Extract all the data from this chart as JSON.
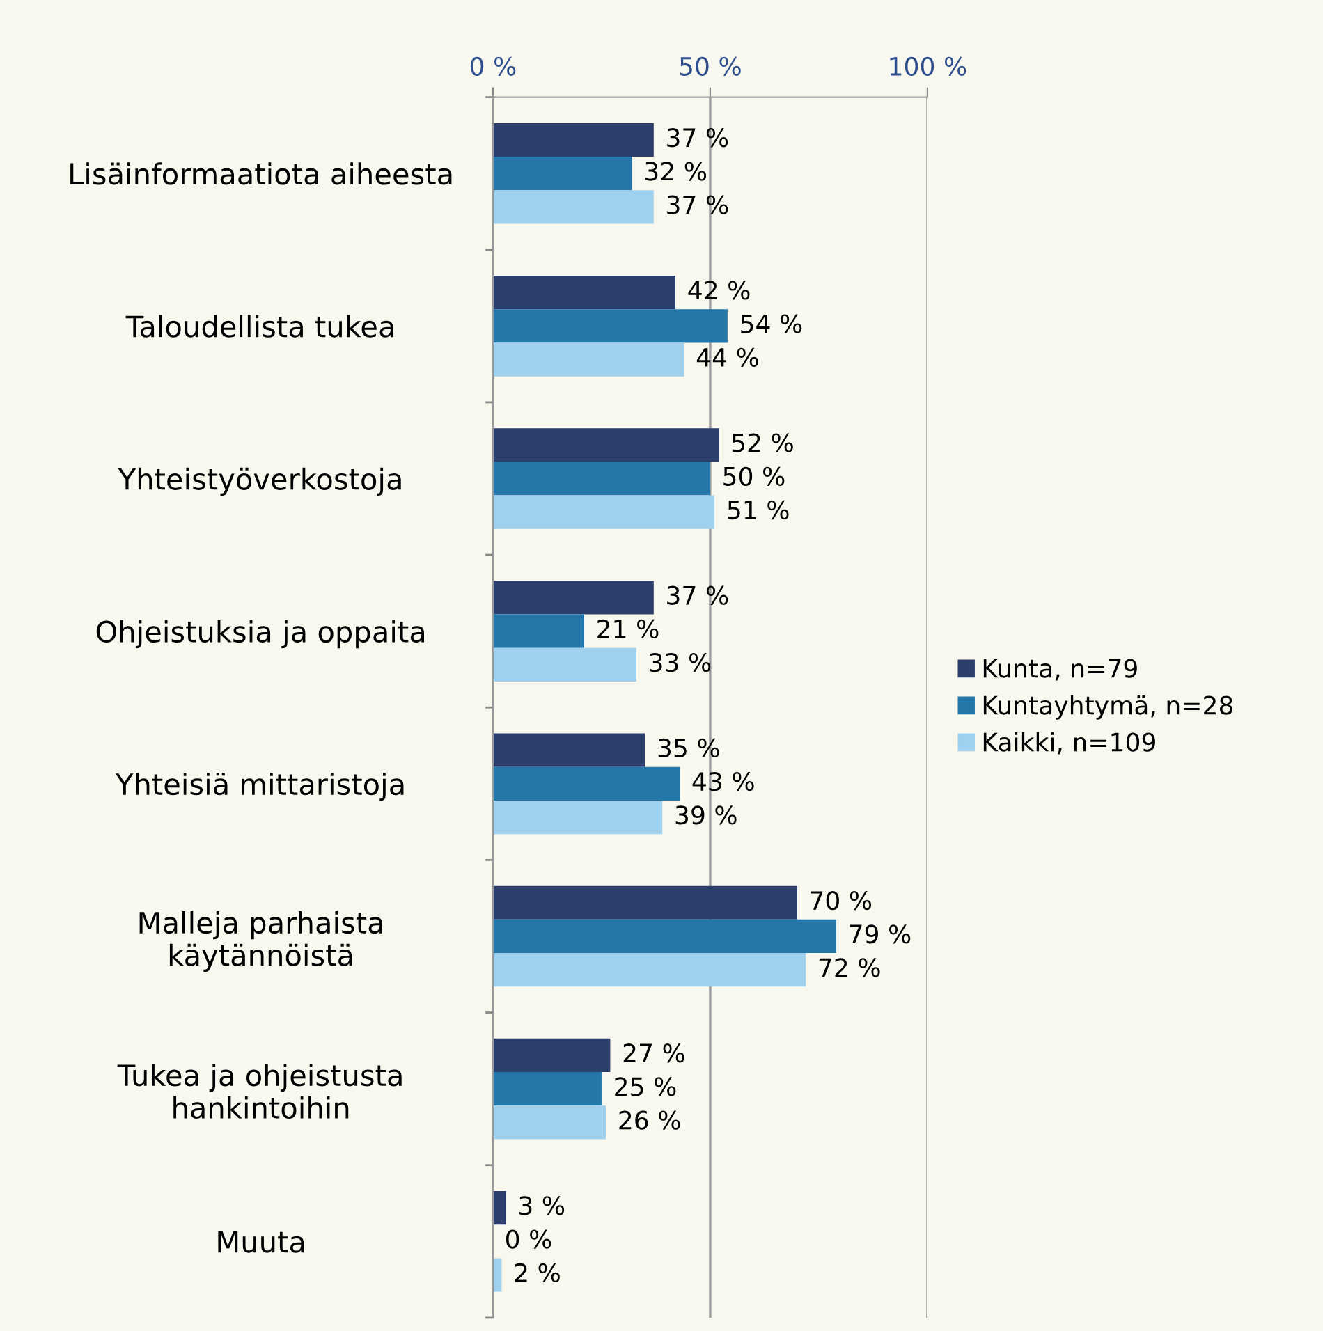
{
  "chart_data": {
    "type": "bar",
    "orientation": "horizontal",
    "categories": [
      "Lisäinformaatiota aiheesta",
      "Taloudellista tukea",
      "Yhteistyöverkostoja",
      "Ohjeistuksia ja oppaita",
      "Yhteisiä mittaristoja",
      "Malleja parhaista\nkäytännöistä",
      "Tukea ja ohjeistusta\nhankintoihin",
      "Muuta"
    ],
    "series": [
      {
        "name": "Kunta, n=79",
        "color": "#2c3e6b",
        "values": [
          37,
          42,
          52,
          37,
          35,
          70,
          27,
          3
        ],
        "value_labels": [
          "37 %",
          "42 %",
          "52 %",
          "37 %",
          "35 %",
          "70 %",
          "27 %",
          "3 %"
        ]
      },
      {
        "name": "Kuntayhtymä, n=28",
        "color": "#2577aa",
        "values": [
          32,
          54,
          50,
          21,
          43,
          79,
          25,
          0
        ],
        "value_labels": [
          "32 %",
          "54 %",
          "50 %",
          "21 %",
          "43 %",
          "79 %",
          "25 %",
          "0 %"
        ]
      },
      {
        "name": "Kaikki, n=109",
        "color": "#9fd0ee",
        "values": [
          37,
          44,
          51,
          33,
          39,
          72,
          26,
          2
        ],
        "value_labels": [
          "37 %",
          "44 %",
          "51 %",
          "33 %",
          "39 %",
          "72 %",
          "26 %",
          "2 %"
        ]
      }
    ],
    "xlim": [
      0,
      100
    ],
    "xticks": [
      {
        "value": 0,
        "label": "0 %"
      },
      {
        "value": 50,
        "label": "50 %"
      },
      {
        "value": 100,
        "label": "100 %"
      }
    ],
    "grid": "x",
    "legend": "right"
  }
}
